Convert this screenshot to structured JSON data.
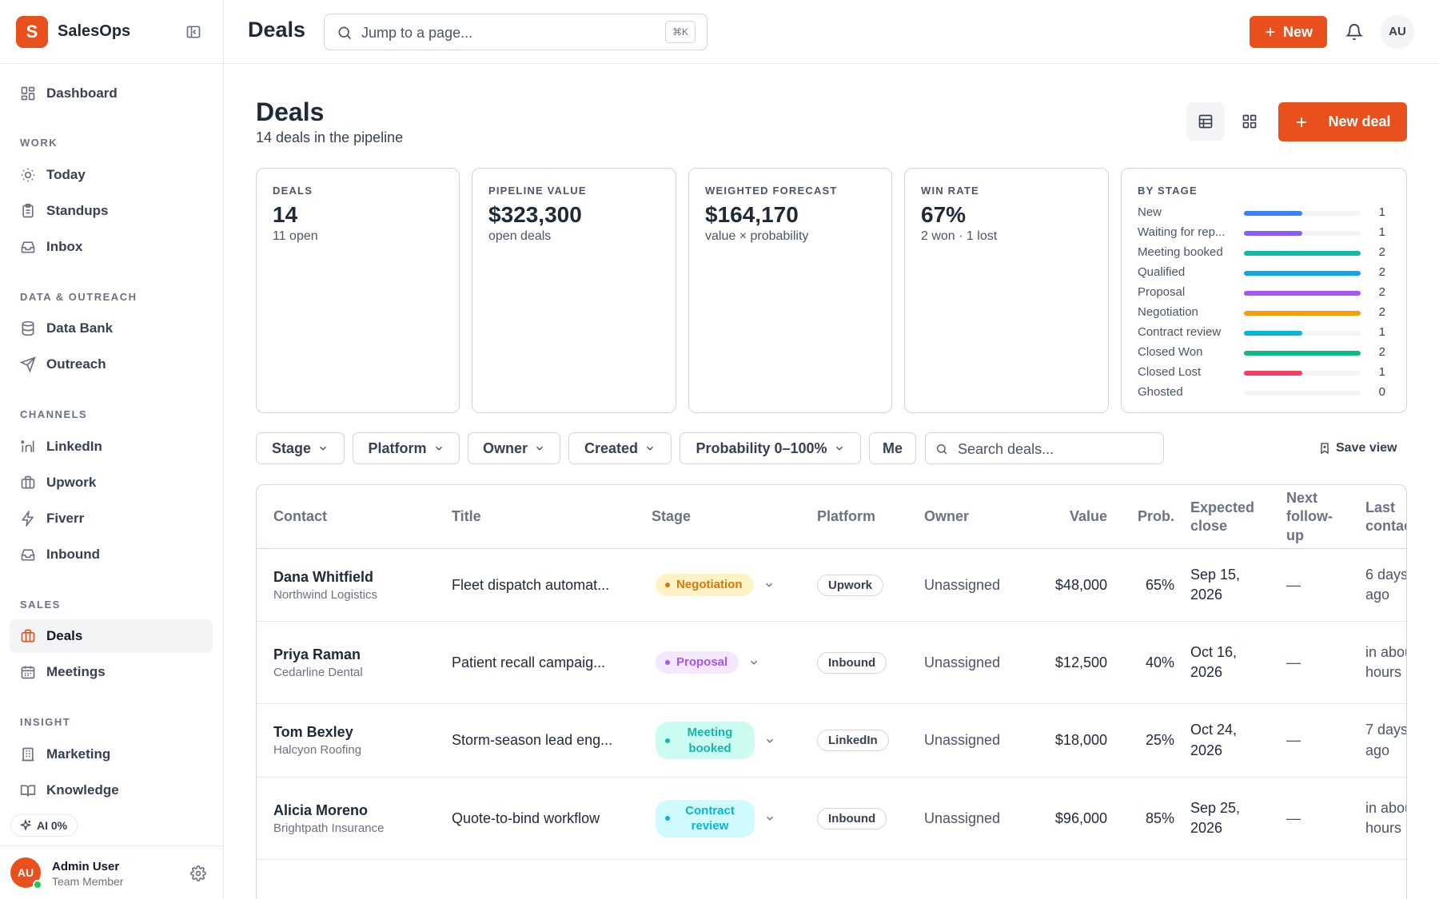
{
  "brand": {
    "logo_letter": "S",
    "name": "SalesOps"
  },
  "sidebar": {
    "dashboard": "Dashboard",
    "sections": {
      "work": "WORK",
      "data": "DATA & OUTREACH",
      "channels": "CHANNELS",
      "sales": "SALES",
      "insight": "INSIGHT"
    },
    "work": [
      "Today",
      "Standups",
      "Inbox"
    ],
    "data": [
      "Data Bank",
      "Outreach"
    ],
    "channels": [
      "LinkedIn",
      "Upwork",
      "Fiverr",
      "Inbound"
    ],
    "sales": [
      "Deals",
      "Meetings"
    ],
    "insight": [
      "Marketing",
      "Knowledge"
    ],
    "ai_chip": "AI 0%",
    "user": {
      "initials": "AU",
      "name": "Admin User",
      "role": "Team Member"
    }
  },
  "topbar": {
    "title": "Deals",
    "search_placeholder": "Jump to a page...",
    "shortcut": "⌘K",
    "new_label": "New",
    "avatar": "AU"
  },
  "page": {
    "title": "Deals",
    "subtitle": "14 deals in the pipeline",
    "new_deal_label": "New deal"
  },
  "stats": [
    {
      "label": "DEALS",
      "value": "14",
      "sub": "11 open"
    },
    {
      "label": "PIPELINE VALUE",
      "value": "$323,300",
      "sub": "open deals"
    },
    {
      "label": "WEIGHTED FORECAST",
      "value": "$164,170",
      "sub": "value × probability"
    },
    {
      "label": "WIN RATE",
      "value": "67%",
      "sub": "2 won · 1 lost"
    }
  ],
  "by_stage": {
    "label": "BY STAGE",
    "max": 2,
    "items": [
      {
        "name": "New",
        "count": 1,
        "color": "#3b82f6"
      },
      {
        "name": "Waiting for rep...",
        "count": 1,
        "color": "#8b5cf6"
      },
      {
        "name": "Meeting booked",
        "count": 2,
        "color": "#14b8a6"
      },
      {
        "name": "Qualified",
        "count": 2,
        "color": "#0ea5e9"
      },
      {
        "name": "Proposal",
        "count": 2,
        "color": "#a855f7"
      },
      {
        "name": "Negotiation",
        "count": 2,
        "color": "#f59e0b"
      },
      {
        "name": "Contract review",
        "count": 1,
        "color": "#06b6d4"
      },
      {
        "name": "Closed Won",
        "count": 2,
        "color": "#10b981"
      },
      {
        "name": "Closed Lost",
        "count": 1,
        "color": "#f43f5e"
      },
      {
        "name": "Ghosted",
        "count": 0,
        "color": "#9ca3af"
      }
    ]
  },
  "filters": [
    "Stage",
    "Platform",
    "Owner",
    "Created",
    "Probability 0–100%",
    "Me"
  ],
  "deal_search_placeholder": "Search deals...",
  "save_view": "Save view",
  "table": {
    "headers": [
      "Contact",
      "Title",
      "Stage",
      "Platform",
      "Owner",
      "Value",
      "Prob.",
      "Expected close",
      "Next follow-up",
      "Last contact"
    ],
    "rows": [
      {
        "name": "Dana Whitfield",
        "company": "Northwind Logistics",
        "title": "Fleet dispatch automat...",
        "stage": "Negotiation",
        "stage_bg": "#fef3c7",
        "stage_fg": "#d97706",
        "platform": "Upwork",
        "owner": "Unassigned",
        "value": "$48,000",
        "prob": "65%",
        "close": "Sep 15, 2026",
        "next": "—",
        "last": "6 days ago"
      },
      {
        "name": "Priya Raman",
        "company": "Cedarline Dental",
        "title": "Patient recall campaig...",
        "stage": "Proposal",
        "stage_bg": "#f3e8ff",
        "stage_fg": "#a855f7",
        "platform": "Inbound",
        "owner": "Unassigned",
        "value": "$12,500",
        "prob": "40%",
        "close": "Oct 16, 2026",
        "next": "—",
        "last": "in about hours"
      },
      {
        "name": "Tom Bexley",
        "company": "Halcyon Roofing",
        "title": "Storm-season lead eng...",
        "stage": "Meeting booked",
        "stage_bg": "#ccfbf1",
        "stage_fg": "#14b8a6",
        "platform": "LinkedIn",
        "owner": "Unassigned",
        "value": "$18,000",
        "prob": "25%",
        "close": "Oct 24, 2026",
        "next": "—",
        "last": "7 days ago"
      },
      {
        "name": "Alicia Moreno",
        "company": "Brightpath Insurance",
        "title": "Quote-to-bind workflow",
        "stage": "Contract review",
        "stage_bg": "#cffafe",
        "stage_fg": "#06b6d4",
        "platform": "Inbound",
        "owner": "Unassigned",
        "value": "$96,000",
        "prob": "85%",
        "close": "Sep 25, 2026",
        "next": "—",
        "last": "in about hours"
      }
    ]
  }
}
